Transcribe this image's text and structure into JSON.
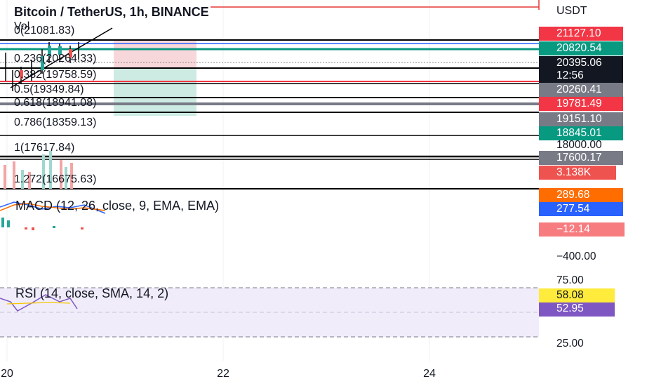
{
  "header": {
    "title": "Bitcoin / TetherUS, 1h, BINANCE",
    "volume": "Vol"
  },
  "fib_levels": [
    "0(21081.83)",
    "0.236(20264.33)",
    "0.382(19758.59)",
    "0.5(19349.84)",
    "0.618(18941.08)",
    "0.786(18359.13)",
    "1(17617.84)",
    "1.272(16675.63)"
  ],
  "indicators": {
    "macd": "MACD (12, 26, close, 9, EMA, EMA)",
    "rsi": "RSI (14, close, SMA, 14, 2)"
  },
  "price_axis": {
    "unit": "USDT",
    "labels": [
      "21127.10",
      "20820.54",
      "20395.06",
      "12:56",
      "20260.41",
      "19781.49",
      "19151.10",
      "18845.01",
      "18000.00",
      "17600.17",
      "3.138K"
    ]
  },
  "macd_axis": {
    "labels": [
      "289.68",
      "277.54",
      "−12.14",
      "−400.00"
    ]
  },
  "rsi_axis": {
    "labels": [
      "75.00",
      "58.08",
      "52.95",
      "25.00"
    ]
  },
  "time_axis": {
    "labels": [
      "20",
      "22",
      "24"
    ]
  }
}
